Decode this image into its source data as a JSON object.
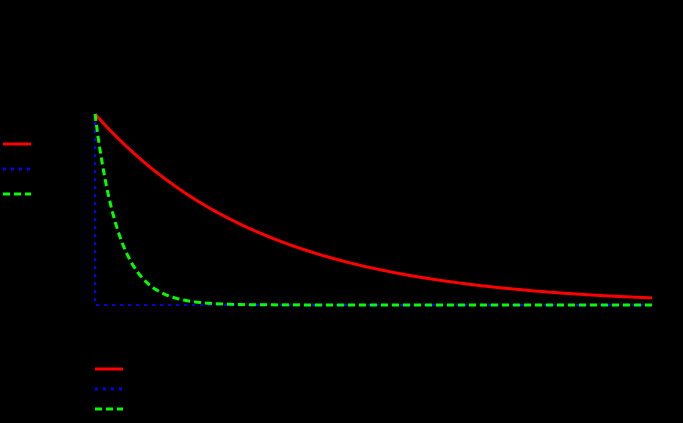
{
  "chart_data": {
    "type": "line",
    "title": "",
    "xlabel": "",
    "ylabel": "",
    "xlim": [
      0,
      10
    ],
    "ylim": [
      0,
      1
    ],
    "grid": false,
    "legend_placement": [
      "left",
      "bottom-left"
    ],
    "x": [
      0,
      0.1,
      0.2,
      0.3,
      0.5,
      0.75,
      1,
      1.5,
      2,
      3,
      4,
      5,
      6,
      7,
      8,
      9,
      10
    ],
    "series": [
      {
        "name": "",
        "color": "#ff0000",
        "style": "solid",
        "values": [
          1,
          0.968,
          0.936,
          0.906,
          0.848,
          0.781,
          0.719,
          0.61,
          0.517,
          0.372,
          0.267,
          0.192,
          0.138,
          0.099,
          0.071,
          0.051,
          0.037
        ]
      },
      {
        "name": "",
        "color": "#0000ff",
        "style": "dotted",
        "values": [
          1,
          0.005,
          0,
          0,
          0,
          0,
          0,
          0,
          0,
          0,
          0,
          0,
          0,
          0,
          0,
          0,
          0
        ]
      },
      {
        "name": "",
        "color": "#00ff00",
        "style": "dashed",
        "values": [
          1,
          0.795,
          0.631,
          0.502,
          0.317,
          0.178,
          0.1,
          0.032,
          0.01,
          0.001,
          0,
          0,
          0,
          0,
          0,
          0,
          0
        ]
      }
    ]
  }
}
